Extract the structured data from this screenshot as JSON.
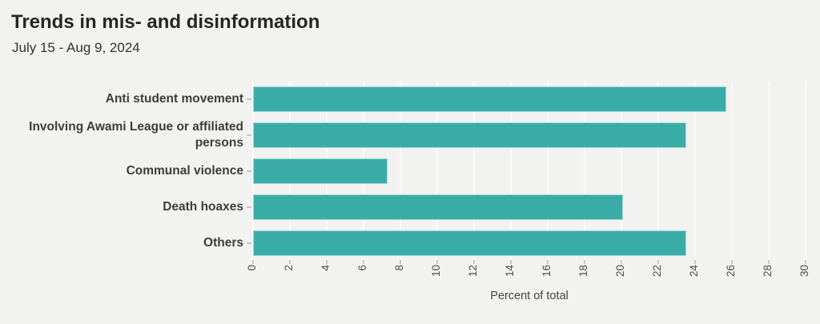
{
  "header": {
    "title": "Trends in mis- and disinformation",
    "subtitle": "July 15 - Aug 9, 2024"
  },
  "chart_data": {
    "type": "bar",
    "orientation": "horizontal",
    "title": "Trends in mis- and disinformation",
    "subtitle": "July 15 - Aug 9, 2024",
    "categories": [
      "Anti student movement",
      "Involving Awami League or affiliated persons",
      "Communal violence",
      "Death hoaxes",
      "Others"
    ],
    "values": [
      25.7,
      23.5,
      7.3,
      20.1,
      23.5
    ],
    "xlabel": "Percent of total",
    "ylabel": "",
    "xlim": [
      0,
      30
    ],
    "xticks": [
      0,
      2,
      4,
      6,
      8,
      10,
      12,
      14,
      16,
      18,
      20,
      22,
      24,
      26,
      28,
      30
    ],
    "tick_label_rotation_deg": -90,
    "grid": true,
    "legend": false,
    "colors": {
      "bar": "#3aaca8",
      "background": "#f2f2f0",
      "gridline": "#fafaf8",
      "title": "#262626",
      "subtitle": "#333333",
      "category_label": "#3d3d3d",
      "tick_label": "#4d4d4d",
      "axis_label": "#444444",
      "tick_mark": "#c9c8c6"
    }
  }
}
